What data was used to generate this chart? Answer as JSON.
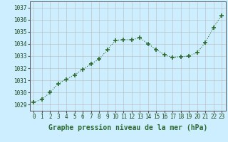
{
  "x": [
    0,
    1,
    2,
    3,
    4,
    5,
    6,
    7,
    8,
    9,
    10,
    11,
    12,
    13,
    14,
    15,
    16,
    17,
    18,
    19,
    20,
    21,
    22,
    23
  ],
  "y": [
    1029.2,
    1029.45,
    1030.0,
    1030.75,
    1031.1,
    1031.45,
    1031.9,
    1032.35,
    1032.75,
    1033.5,
    1034.3,
    1034.35,
    1034.35,
    1034.5,
    1034.0,
    1033.55,
    1033.1,
    1032.9,
    1032.95,
    1033.0,
    1033.3,
    1034.1,
    1035.35,
    1036.35
  ],
  "line_color": "#2d6a2d",
  "marker": "+",
  "marker_size": 4,
  "line_width": 0.8,
  "background_color": "#cceeff",
  "grid_color": "#bbbbbb",
  "xlabel": "Graphe pression niveau de la mer (hPa)",
  "xlabel_fontsize": 7,
  "xlabel_fontweight": "bold",
  "ylabel_ticks": [
    1029,
    1030,
    1031,
    1032,
    1033,
    1034,
    1035,
    1036,
    1037
  ],
  "xlim": [
    -0.5,
    23.5
  ],
  "ylim": [
    1028.5,
    1037.5
  ],
  "xticks": [
    0,
    1,
    2,
    3,
    4,
    5,
    6,
    7,
    8,
    9,
    10,
    11,
    12,
    13,
    14,
    15,
    16,
    17,
    18,
    19,
    20,
    21,
    22,
    23
  ],
  "tick_fontsize": 5.5,
  "line_style": "dotted"
}
